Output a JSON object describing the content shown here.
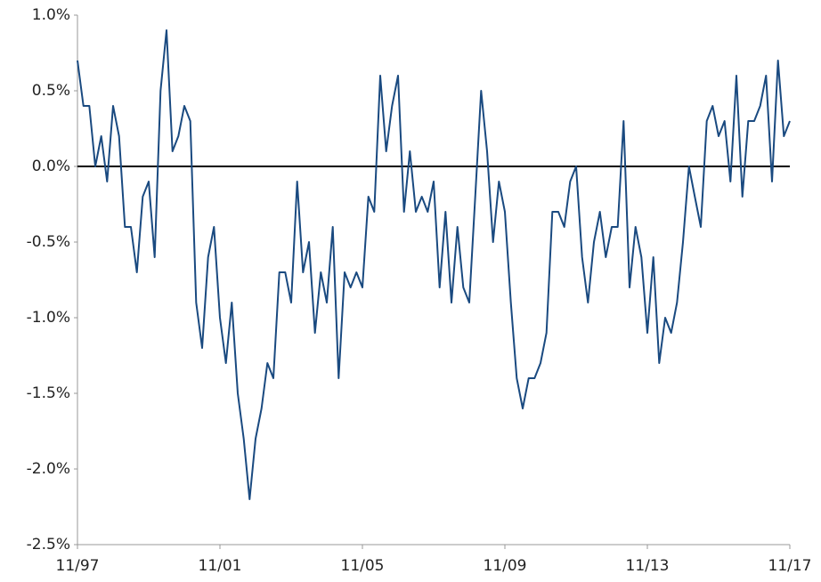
{
  "chart_data": {
    "type": "line",
    "x": [
      "1997-11",
      "1998-01",
      "1998-03",
      "1998-05",
      "1998-07",
      "1998-09",
      "1998-11",
      "1999-01",
      "1999-03",
      "1999-05",
      "1999-07",
      "1999-09",
      "1999-11",
      "2000-01",
      "2000-03",
      "2000-05",
      "2000-07",
      "2000-09",
      "2000-11",
      "2001-01",
      "2001-03",
      "2001-05",
      "2001-07",
      "2001-09",
      "2001-11",
      "2002-01",
      "2002-03",
      "2002-05",
      "2002-07",
      "2002-09",
      "2002-11",
      "2003-01",
      "2003-03",
      "2003-05",
      "2003-07",
      "2003-09",
      "2003-11",
      "2004-01",
      "2004-03",
      "2004-05",
      "2004-07",
      "2004-09",
      "2004-11",
      "2005-01",
      "2005-03",
      "2005-05",
      "2005-07",
      "2005-09",
      "2005-11",
      "2006-01",
      "2006-03",
      "2006-05",
      "2006-07",
      "2006-09",
      "2006-11",
      "2007-01",
      "2007-03",
      "2007-05",
      "2007-07",
      "2007-09",
      "2007-11",
      "2008-01",
      "2008-03",
      "2008-05",
      "2008-07",
      "2008-09",
      "2008-11",
      "2009-01",
      "2009-03",
      "2009-05",
      "2009-07",
      "2009-09",
      "2009-11",
      "2010-01",
      "2010-03",
      "2010-05",
      "2010-07",
      "2010-09",
      "2010-11",
      "2011-01",
      "2011-03",
      "2011-05",
      "2011-07",
      "2011-09",
      "2011-11",
      "2012-01",
      "2012-03",
      "2012-05",
      "2012-07",
      "2012-09",
      "2012-11",
      "2013-01",
      "2013-03",
      "2013-05",
      "2013-07",
      "2013-09",
      "2013-11",
      "2014-01",
      "2014-03",
      "2014-05",
      "2014-07",
      "2014-09",
      "2014-11",
      "2015-01",
      "2015-03",
      "2015-05",
      "2015-07",
      "2015-09",
      "2015-11",
      "2016-01",
      "2016-03",
      "2016-05",
      "2016-07",
      "2016-09",
      "2016-11",
      "2017-01",
      "2017-03",
      "2017-05",
      "2017-07",
      "2017-09",
      "2017-11"
    ],
    "series": [
      {
        "color": "#1a4a80",
        "values": [
          0.7,
          0.4,
          0.4,
          0.0,
          0.2,
          -0.1,
          0.4,
          0.2,
          -0.4,
          -0.4,
          -0.7,
          -0.2,
          -0.1,
          -0.6,
          0.5,
          0.9,
          0.1,
          0.2,
          0.4,
          0.3,
          -0.9,
          -1.2,
          -0.6,
          -0.4,
          -1.0,
          -1.3,
          -0.9,
          -1.5,
          -1.8,
          -2.2,
          -1.8,
          -1.6,
          -1.3,
          -1.4,
          -0.7,
          -0.7,
          -0.9,
          -0.1,
          -0.7,
          -0.5,
          -1.1,
          -0.7,
          -0.9,
          -0.4,
          -1.4,
          -0.7,
          -0.8,
          -0.7,
          -0.8,
          -0.2,
          -0.3,
          0.6,
          0.1,
          0.4,
          0.6,
          -0.3,
          0.1,
          -0.3,
          -0.2,
          -0.3,
          -0.1,
          -0.8,
          -0.3,
          -0.9,
          -0.4,
          -0.8,
          -0.9,
          -0.2,
          0.5,
          0.1,
          -0.5,
          -0.1,
          -0.3,
          -0.9,
          -1.4,
          -1.6,
          -1.4,
          -1.4,
          -1.3,
          -1.1,
          -0.3,
          -0.3,
          -0.4,
          -0.1,
          0.0,
          -0.6,
          -0.9,
          -0.5,
          -0.3,
          -0.6,
          -0.4,
          -0.4,
          0.3,
          -0.8,
          -0.4,
          -0.6,
          -1.1,
          -0.6,
          -1.3,
          -1.0,
          -1.1,
          -0.9,
          -0.5,
          0.0,
          -0.2,
          -0.4,
          0.3,
          0.4,
          0.2,
          0.3,
          -0.1,
          0.6,
          -0.2,
          0.3,
          0.3,
          0.4,
          0.6,
          -0.1,
          0.7,
          0.2,
          0.3
        ]
      }
    ],
    "xlim": [
      "1997-11",
      "2017-11"
    ],
    "xticks": [
      {
        "value": "1997-11",
        "label": "11/97"
      },
      {
        "value": "2001-11",
        "label": "11/01"
      },
      {
        "value": "2005-11",
        "label": "11/05"
      },
      {
        "value": "2009-11",
        "label": "11/09"
      },
      {
        "value": "2013-11",
        "label": "11/13"
      },
      {
        "value": "2017-11",
        "label": "11/17"
      }
    ],
    "ylim": [
      -2.5,
      1.0
    ],
    "yticks": [
      {
        "value": -2.5,
        "label": "-2.5%"
      },
      {
        "value": -2,
        "label": "-2.0%"
      },
      {
        "value": -1.5,
        "label": "-1.5%"
      },
      {
        "value": -1,
        "label": "-1.0%"
      },
      {
        "value": -0.5,
        "label": "-0.5%"
      },
      {
        "value": 0,
        "label": "0.0%"
      },
      {
        "value": 0.5,
        "label": "0.5%"
      },
      {
        "value": 1,
        "label": "1.0%"
      }
    ],
    "grid": false
  }
}
